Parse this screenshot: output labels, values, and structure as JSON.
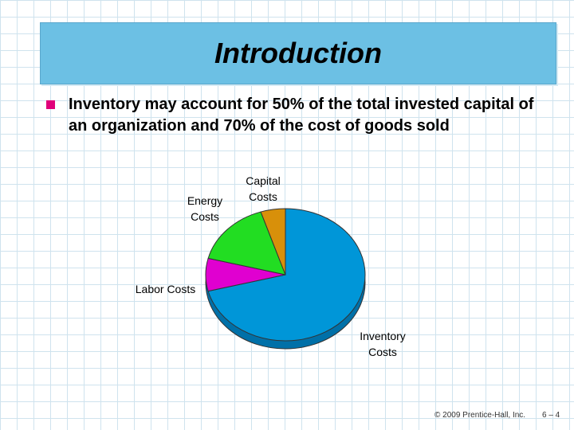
{
  "slide": {
    "title": "Introduction",
    "bullets": [
      "Inventory may account for 50% of the total invested capital of an organization and 70% of the cost of goods sold"
    ],
    "footer": {
      "copyright": "© 2009 Prentice-Hall, Inc.",
      "page": "6 – 4"
    }
  },
  "chart_data": {
    "type": "pie",
    "categories": [
      "Inventory Costs",
      "Labor Costs",
      "Energy Costs",
      "Capital Costs"
    ],
    "values": [
      71,
      8,
      16,
      5
    ],
    "colors": [
      "#0096d8",
      "#e000d0",
      "#22dd22",
      "#d8900a"
    ]
  }
}
